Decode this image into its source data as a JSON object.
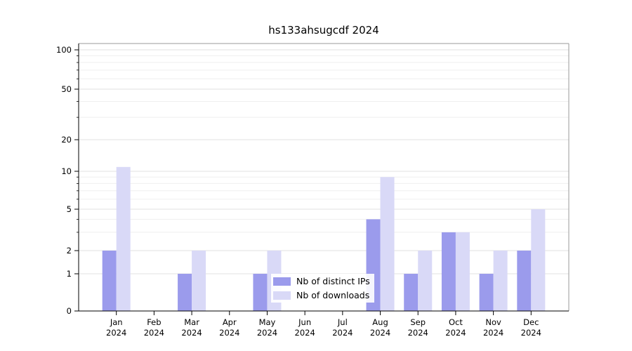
{
  "title": "hs133ahsugcdf 2024",
  "chart_data": {
    "type": "bar",
    "title": "hs133ahsugcdf 2024",
    "categories": [
      "Jan 2024",
      "Feb 2024",
      "Mar 2024",
      "Apr 2024",
      "May 2024",
      "Jun 2024",
      "Jul 2024",
      "Aug 2024",
      "Sep 2024",
      "Oct 2024",
      "Nov 2024",
      "Dec 2024"
    ],
    "series": [
      {
        "name": "Nb of distinct IPs",
        "color": "#9b9bec",
        "values": [
          2,
          0,
          1,
          0,
          1,
          0,
          0,
          4,
          1,
          3,
          1,
          2
        ]
      },
      {
        "name": "Nb of downloads",
        "color": "#d9d9f7",
        "values": [
          11,
          0,
          2,
          0,
          2,
          0,
          0,
          9,
          2,
          3,
          2,
          5
        ]
      }
    ],
    "y_axis": {
      "scale": "log-like with zero baseline",
      "major_ticks": [
        0,
        1,
        2,
        5,
        10,
        20,
        50,
        100
      ],
      "minor_ticks": [
        3,
        4,
        6,
        7,
        8,
        9,
        30,
        40,
        60,
        70,
        80,
        90
      ],
      "range": [
        0,
        100
      ]
    },
    "grid": true,
    "legend_position": "inside-bottom-center"
  },
  "legend": {
    "items": [
      {
        "label": "Nb of distinct IPs"
      },
      {
        "label": "Nb of downloads"
      }
    ]
  }
}
